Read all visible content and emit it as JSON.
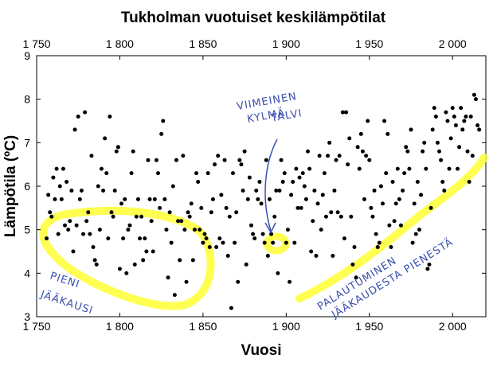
{
  "chart_data": {
    "type": "scatter",
    "title": "Tukholman vuotuiset keskilämpötilat",
    "xlabel": "Vuosi",
    "ylabel": "Lämpötila (ºC)",
    "xlim": [
      1750,
      2020
    ],
    "ylim": [
      3,
      9
    ],
    "x_tick_labels": [
      "1 750",
      "1 800",
      "1 850",
      "1 900",
      "1 950",
      "2 000"
    ],
    "x_tick_values": [
      1750,
      1800,
      1850,
      1900,
      1950,
      2000
    ],
    "y_tick_values": [
      3,
      4,
      5,
      6,
      7,
      8,
      9
    ],
    "secondary_x_axis_top": true,
    "grid": false,
    "marker_color": "#000000",
    "highlight_color": "#ffff33",
    "annotation_color": "#3a4fb0",
    "series": [
      {
        "points": [
          [
            1756,
            4.8
          ],
          [
            1757,
            5.8
          ],
          [
            1758,
            5.4
          ],
          [
            1759,
            5.3
          ],
          [
            1760,
            6.2
          ],
          [
            1761,
            5.7
          ],
          [
            1762,
            6.4
          ],
          [
            1763,
            4.9
          ],
          [
            1764,
            6.0
          ],
          [
            1765,
            5.7
          ],
          [
            1766,
            6.4
          ],
          [
            1767,
            5.1
          ],
          [
            1768,
            6.1
          ],
          [
            1769,
            5.0
          ],
          [
            1770,
            5.2
          ],
          [
            1771,
            5.9
          ],
          [
            1772,
            4.5
          ],
          [
            1773,
            7.3
          ],
          [
            1774,
            5.1
          ],
          [
            1775,
            7.6
          ],
          [
            1776,
            5.7
          ],
          [
            1777,
            5.9
          ],
          [
            1778,
            4.9
          ],
          [
            1779,
            7.7
          ],
          [
            1780,
            5.2
          ],
          [
            1781,
            5.4
          ],
          [
            1782,
            4.9
          ],
          [
            1783,
            6.7
          ],
          [
            1784,
            4.6
          ],
          [
            1785,
            4.3
          ],
          [
            1786,
            4.2
          ],
          [
            1787,
            6.0
          ],
          [
            1788,
            5.0
          ],
          [
            1789,
            6.4
          ],
          [
            1790,
            5.9
          ],
          [
            1791,
            7.1
          ],
          [
            1792,
            6.3
          ],
          [
            1793,
            4.8
          ],
          [
            1794,
            7.6
          ],
          [
            1795,
            5.4
          ],
          [
            1796,
            5.3
          ],
          [
            1797,
            5.9
          ],
          [
            1798,
            6.8
          ],
          [
            1799,
            6.9
          ],
          [
            1800,
            4.1
          ],
          [
            1801,
            5.6
          ],
          [
            1802,
            4.8
          ],
          [
            1803,
            5.7
          ],
          [
            1804,
            4.0
          ],
          [
            1805,
            5.0
          ],
          [
            1806,
            5.1
          ],
          [
            1807,
            6.3
          ],
          [
            1808,
            6.8
          ],
          [
            1809,
            4.2
          ],
          [
            1810,
            5.3
          ],
          [
            1811,
            5.7
          ],
          [
            1812,
            4.8
          ],
          [
            1813,
            5.3
          ],
          [
            1814,
            4.3
          ],
          [
            1815,
            4.8
          ],
          [
            1816,
            4.5
          ],
          [
            1817,
            6.6
          ],
          [
            1818,
            5.7
          ],
          [
            1819,
            5.2
          ],
          [
            1820,
            4.5
          ],
          [
            1821,
            5.7
          ],
          [
            1822,
            6.6
          ],
          [
            1823,
            6.3
          ],
          [
            1824,
            5.5
          ],
          [
            1825,
            7.2
          ],
          [
            1826,
            7.5
          ],
          [
            1827,
            5.7
          ],
          [
            1828,
            5.0
          ],
          [
            1829,
            3.9
          ],
          [
            1830,
            5.4
          ],
          [
            1831,
            4.7
          ],
          [
            1832,
            6.0
          ],
          [
            1833,
            3.5
          ],
          [
            1834,
            6.6
          ],
          [
            1835,
            5.2
          ],
          [
            1836,
            4.3
          ],
          [
            1837,
            5.2
          ],
          [
            1838,
            6.7
          ],
          [
            1839,
            5.0
          ],
          [
            1840,
            3.8
          ],
          [
            1841,
            5.4
          ],
          [
            1842,
            5.3
          ],
          [
            1843,
            5.6
          ],
          [
            1844,
            4.3
          ],
          [
            1845,
            5.0
          ],
          [
            1846,
            6.3
          ],
          [
            1847,
            6.1
          ],
          [
            1848,
            5.0
          ],
          [
            1849,
            5.5
          ],
          [
            1850,
            4.7
          ],
          [
            1851,
            4.9
          ],
          [
            1852,
            4.8
          ],
          [
            1853,
            6.3
          ],
          [
            1854,
            4.6
          ],
          [
            1855,
            5.4
          ],
          [
            1856,
            5.7
          ],
          [
            1857,
            6.5
          ],
          [
            1858,
            4.6
          ],
          [
            1859,
            6.7
          ],
          [
            1860,
            4.8
          ],
          [
            1861,
            5.8
          ],
          [
            1862,
            4.7
          ],
          [
            1863,
            6.6
          ],
          [
            1864,
            5.5
          ],
          [
            1865,
            4.4
          ],
          [
            1866,
            5.3
          ],
          [
            1867,
            3.2
          ],
          [
            1868,
            6.3
          ],
          [
            1869,
            4.7
          ],
          [
            1870,
            5.4
          ],
          [
            1871,
            3.8
          ],
          [
            1872,
            6.6
          ],
          [
            1873,
            6.5
          ],
          [
            1874,
            5.9
          ],
          [
            1875,
            6.8
          ],
          [
            1876,
            4.2
          ],
          [
            1877,
            5.7
          ],
          [
            1878,
            6.2
          ],
          [
            1879,
            5.1
          ],
          [
            1880,
            4.9
          ],
          [
            1881,
            4.8
          ],
          [
            1882,
            5.9
          ],
          [
            1883,
            5.7
          ],
          [
            1884,
            6.1
          ],
          [
            1885,
            5.6
          ],
          [
            1886,
            4.9
          ],
          [
            1887,
            4.7
          ],
          [
            1888,
            6.6
          ],
          [
            1889,
            4.4
          ],
          [
            1890,
            5.7
          ],
          [
            1891,
            4.9
          ],
          [
            1892,
            4.7
          ],
          [
            1893,
            5.3
          ],
          [
            1894,
            5.9
          ],
          [
            1895,
            4.0
          ],
          [
            1896,
            5.9
          ],
          [
            1897,
            6.6
          ],
          [
            1898,
            6.1
          ],
          [
            1899,
            6.3
          ],
          [
            1900,
            4.7
          ],
          [
            1901,
            5.0
          ],
          [
            1902,
            3.8
          ],
          [
            1903,
            5.8
          ],
          [
            1904,
            6.1
          ],
          [
            1905,
            4.7
          ],
          [
            1906,
            6.4
          ],
          [
            1907,
            5.5
          ],
          [
            1908,
            6.2
          ],
          [
            1909,
            5.5
          ],
          [
            1910,
            6.3
          ],
          [
            1911,
            6.0
          ],
          [
            1912,
            5.7
          ],
          [
            1913,
            6.8
          ],
          [
            1914,
            6.4
          ],
          [
            1915,
            4.5
          ],
          [
            1916,
            5.2
          ],
          [
            1917,
            5.9
          ],
          [
            1918,
            4.4
          ],
          [
            1919,
            5.6
          ],
          [
            1920,
            6.7
          ],
          [
            1921,
            5.0
          ],
          [
            1922,
            5.8
          ],
          [
            1923,
            6.3
          ],
          [
            1924,
            5.3
          ],
          [
            1925,
            6.7
          ],
          [
            1926,
            7.0
          ],
          [
            1927,
            5.4
          ],
          [
            1928,
            4.4
          ],
          [
            1929,
            5.9
          ],
          [
            1930,
            6.6
          ],
          [
            1931,
            5.4
          ],
          [
            1932,
            6.7
          ],
          [
            1933,
            5.3
          ],
          [
            1934,
            7.7
          ],
          [
            1935,
            4.8
          ],
          [
            1936,
            7.7
          ],
          [
            1937,
            6.5
          ],
          [
            1938,
            7.1
          ],
          [
            1939,
            5.3
          ],
          [
            1940,
            4.2
          ],
          [
            1941,
            4.6
          ],
          [
            1942,
            3.9
          ],
          [
            1943,
            6.9
          ],
          [
            1944,
            6.4
          ],
          [
            1945,
            7.2
          ],
          [
            1946,
            6.8
          ],
          [
            1947,
            5.7
          ],
          [
            1948,
            6.7
          ],
          [
            1949,
            7.5
          ],
          [
            1950,
            6.6
          ],
          [
            1951,
            5.5
          ],
          [
            1952,
            5.3
          ],
          [
            1953,
            5.9
          ],
          [
            1954,
            4.9
          ],
          [
            1955,
            4.6
          ],
          [
            1956,
            4.7
          ],
          [
            1957,
            6.0
          ],
          [
            1958,
            5.6
          ],
          [
            1959,
            7.5
          ],
          [
            1960,
            6.3
          ],
          [
            1961,
            7.2
          ],
          [
            1962,
            5.1
          ],
          [
            1963,
            4.6
          ],
          [
            1964,
            6.1
          ],
          [
            1965,
            5.2
          ],
          [
            1966,
            5.6
          ],
          [
            1967,
            6.4
          ],
          [
            1968,
            5.7
          ],
          [
            1969,
            5.1
          ],
          [
            1970,
            5.9
          ],
          [
            1971,
            6.3
          ],
          [
            1972,
            6.9
          ],
          [
            1973,
            6.8
          ],
          [
            1974,
            6.4
          ],
          [
            1975,
            7.3
          ],
          [
            1976,
            4.7
          ],
          [
            1977,
            5.6
          ],
          [
            1978,
            4.9
          ],
          [
            1979,
            6.1
          ],
          [
            1980,
            5.0
          ],
          [
            1981,
            5.8
          ],
          [
            1982,
            6.8
          ],
          [
            1983,
            7.0
          ],
          [
            1984,
            6.4
          ],
          [
            1985,
            4.1
          ],
          [
            1986,
            4.2
          ],
          [
            1987,
            5.5
          ],
          [
            1988,
            7.3
          ],
          [
            1989,
            7.8
          ],
          [
            1990,
            7.6
          ],
          [
            1991,
            7.0
          ],
          [
            1992,
            6.8
          ],
          [
            1993,
            6.6
          ],
          [
            1994,
            6.1
          ],
          [
            1995,
            5.9
          ],
          [
            1996,
            7.7
          ],
          [
            1997,
            7.5
          ],
          [
            1998,
            6.4
          ],
          [
            1999,
            7.1
          ],
          [
            2000,
            7.8
          ],
          [
            2001,
            7.6
          ],
          [
            2002,
            7.4
          ],
          [
            2003,
            6.4
          ],
          [
            2004,
            6.9
          ],
          [
            2005,
            7.8
          ],
          [
            2006,
            7.3
          ],
          [
            2007,
            7.5
          ],
          [
            2008,
            7.6
          ],
          [
            2009,
            6.8
          ],
          [
            2010,
            6.1
          ],
          [
            2011,
            7.6
          ],
          [
            2012,
            6.7
          ],
          [
            2013,
            8.1
          ],
          [
            2014,
            8.0
          ],
          [
            2015,
            7.4
          ],
          [
            2016,
            7.3
          ]
        ]
      }
    ],
    "annotations": [
      {
        "lines": [
          "VIIMEINEN",
          "KYLMÄ",
          "TALVI"
        ]
      },
      {
        "lines": [
          "PIENI",
          "JÄÄKAUSI"
        ]
      },
      {
        "lines": [
          "PALAUTUMINEN",
          "JÄÄKAUDESTA PIENESTÄ"
        ]
      }
    ]
  }
}
